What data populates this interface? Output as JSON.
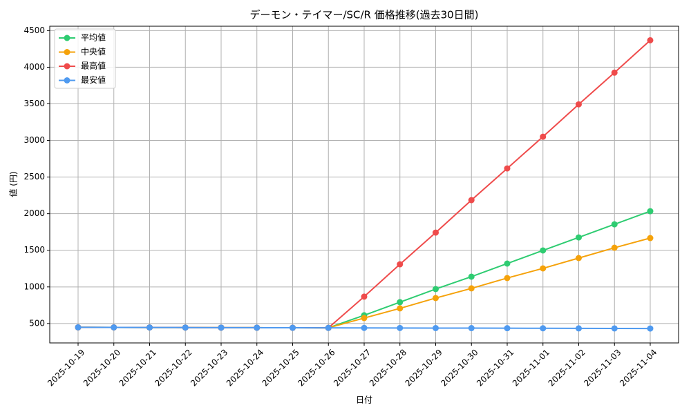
{
  "chart_data": {
    "type": "line",
    "title": "デーモン・テイマー/SC/R 価格推移(過去30日間)",
    "x_label": "日付",
    "y_label": "値 (円)",
    "categories": [
      "2025-10-19",
      "2025-10-20",
      "2025-10-21",
      "2025-10-22",
      "2025-10-23",
      "2025-10-24",
      "2025-10-25",
      "2025-10-26",
      "2025-10-27",
      "2025-10-28",
      "2025-10-29",
      "2025-10-30",
      "2025-10-31",
      "2025-11-01",
      "2025-11-02",
      "2025-11-03",
      "2025-11-04"
    ],
    "series": [
      {
        "name": "平均値",
        "color": "#2ecc71",
        "values": [
          448,
          447,
          446,
          445,
          444,
          443,
          442,
          441,
          613,
          792,
          971,
          1140,
          1319,
          1498,
          1676,
          1855,
          2034
        ]
      },
      {
        "name": "中央値",
        "color": "#f5a20a",
        "values": [
          448,
          447,
          446,
          445,
          444,
          443,
          442,
          441,
          575,
          707,
          848,
          980,
          1121,
          1253,
          1394,
          1535,
          1667
        ]
      },
      {
        "name": "最高値",
        "color": "#ef4b4b",
        "values": [
          448,
          447,
          446,
          445,
          444,
          443,
          442,
          441,
          867,
          1309,
          1742,
          2185,
          2618,
          3051,
          3493,
          3926,
          4368
        ]
      },
      {
        "name": "最安値",
        "color": "#4f9af0",
        "values": [
          448,
          447,
          446,
          445,
          444,
          443,
          442,
          441,
          440,
          439,
          438,
          437,
          436,
          435,
          434,
          433,
          432
        ]
      }
    ],
    "ylim": [
      235,
      4560
    ],
    "yticks": [
      500,
      1000,
      1500,
      2000,
      2500,
      3000,
      3500,
      4000,
      4500
    ],
    "grid": true,
    "legend": "upper-left"
  }
}
